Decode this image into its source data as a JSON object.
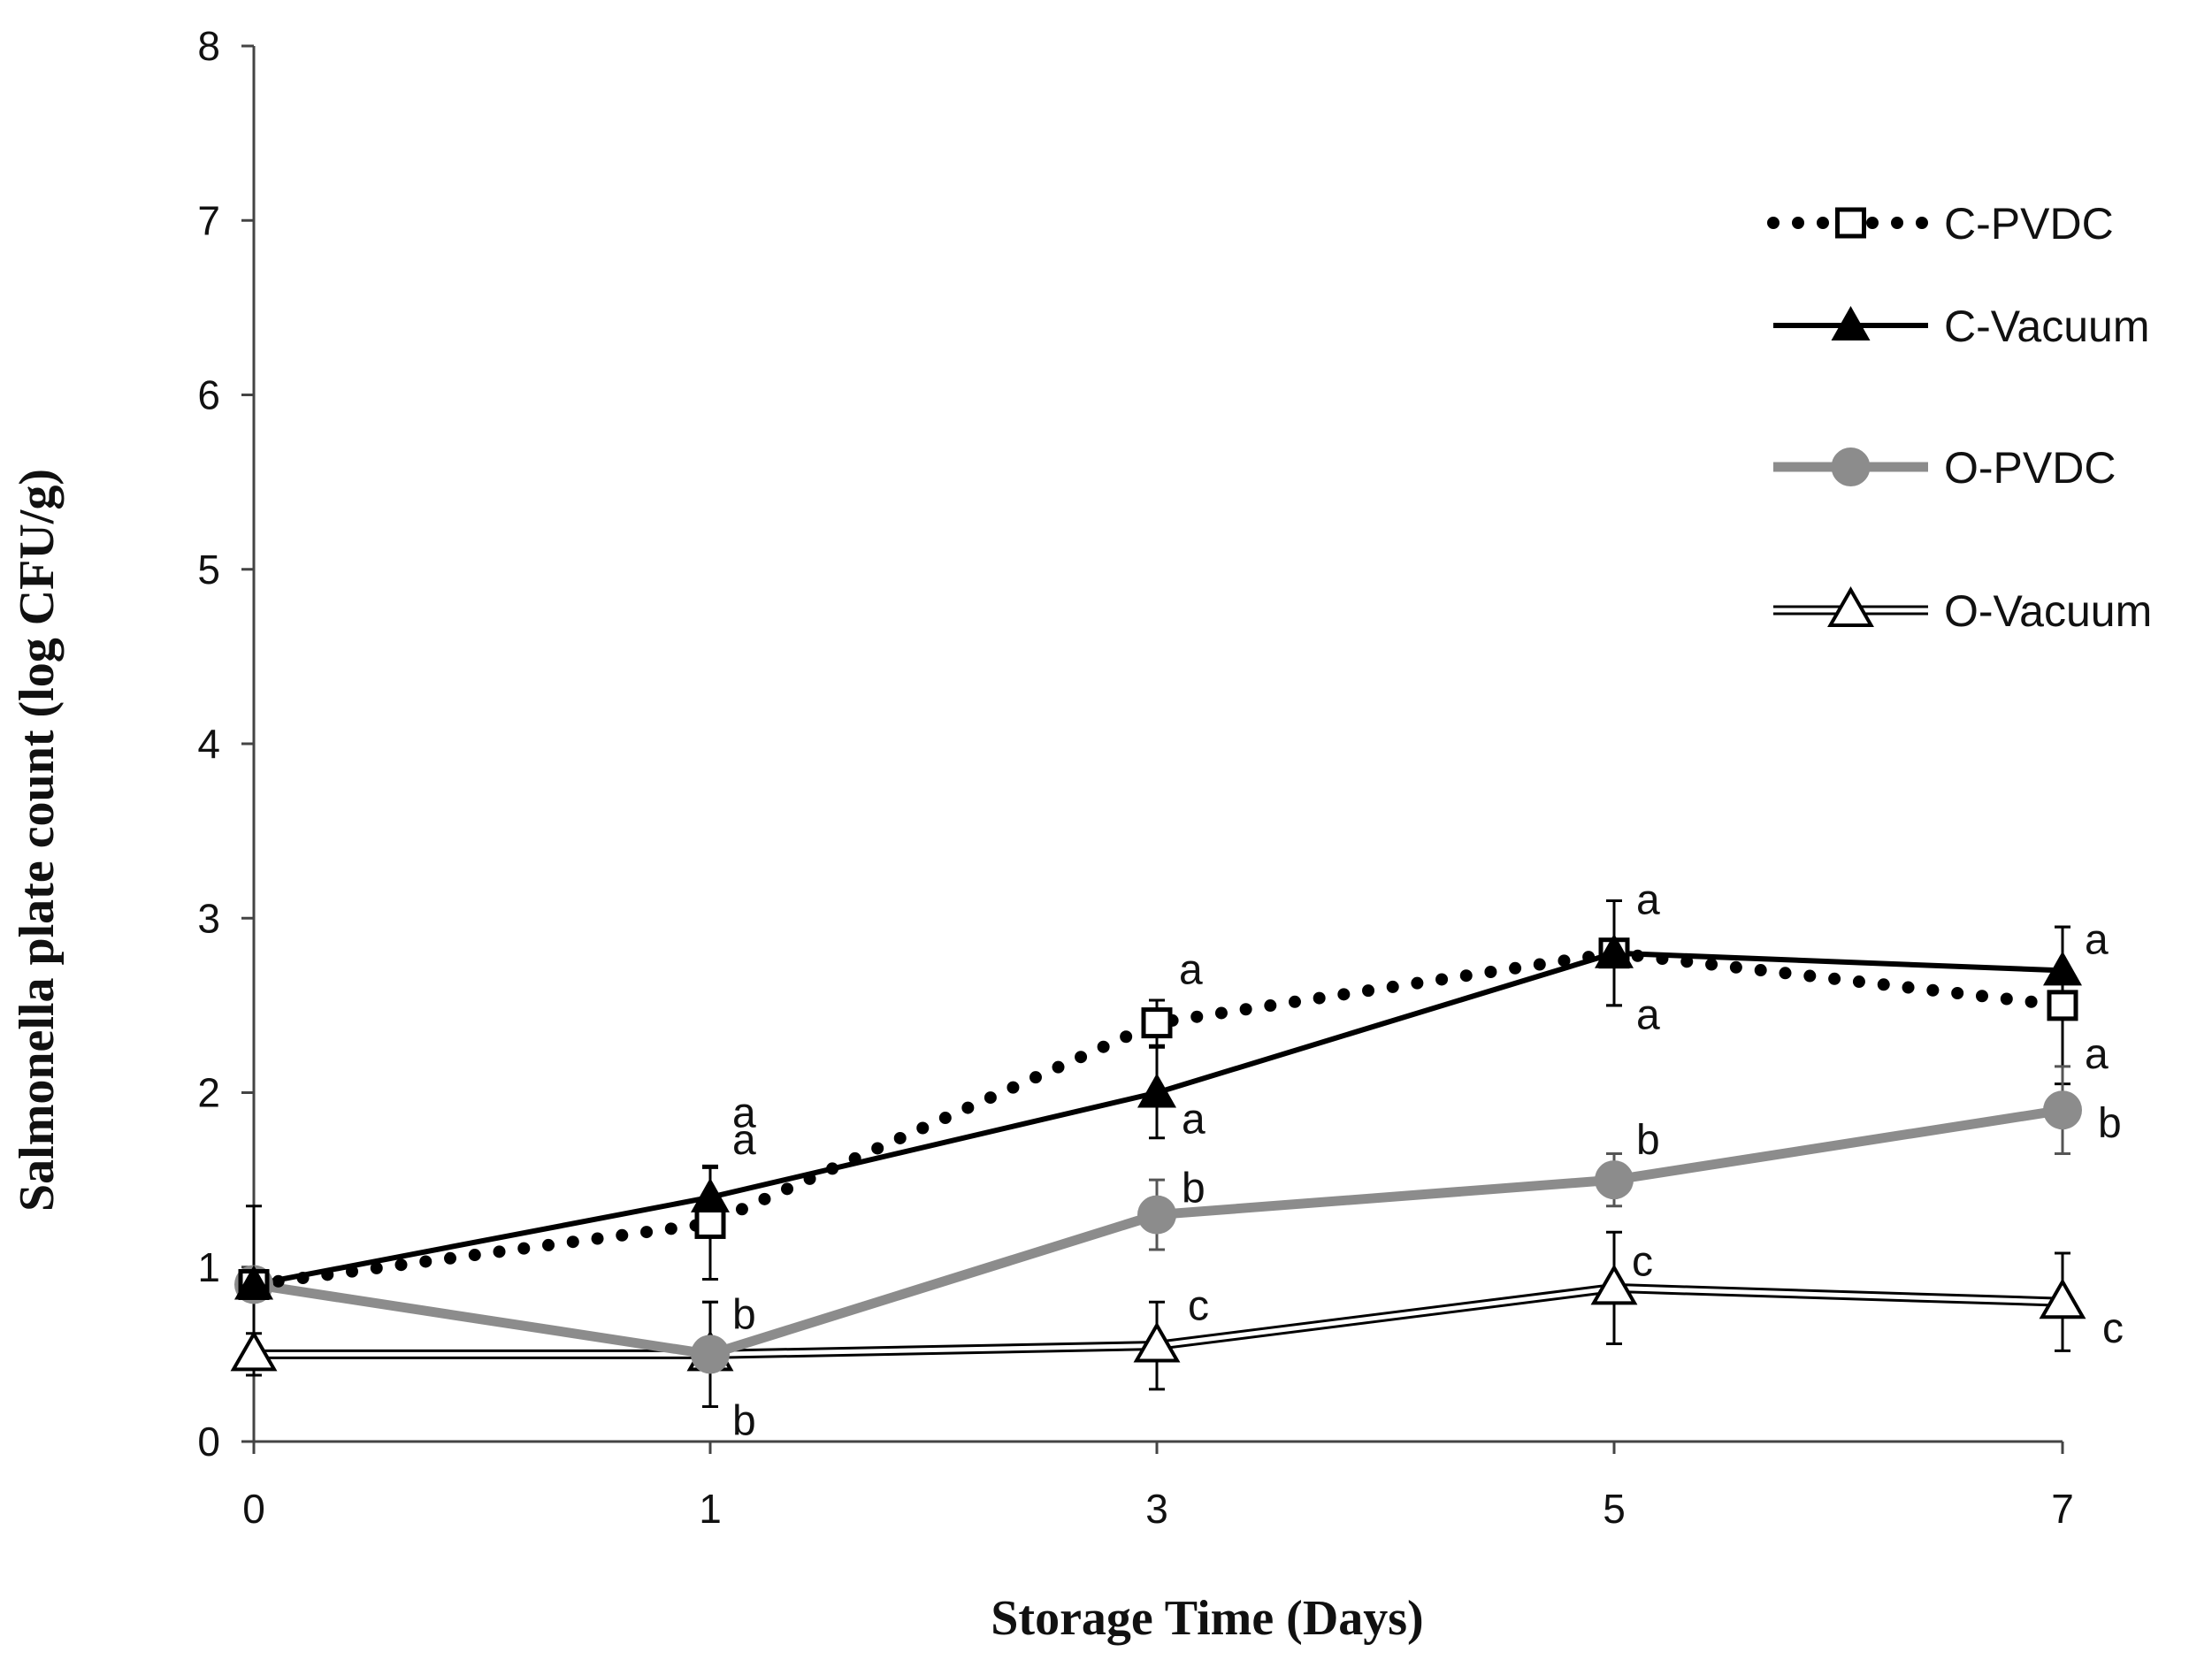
{
  "chart_data": {
    "type": "line",
    "title": "",
    "xlabel": "Storage Time  (Days)",
    "ylabel": "Salmonella plate count (log CFU/g)",
    "x_ticks": [
      "0",
      "1",
      "3",
      "5",
      "7"
    ],
    "y_ticks": [
      "0",
      "1",
      "2",
      "3",
      "4",
      "5",
      "6",
      "7",
      "8"
    ],
    "ylim": [
      0,
      8
    ],
    "grid": false,
    "legend": "right",
    "series": [
      {
        "name": "C-PVDC",
        "style": "dotted",
        "marker": "open-square",
        "color": "#000000",
        "values": [
          0.9,
          1.25,
          2.4,
          2.8,
          2.5
        ],
        "errors": [
          0.45,
          0.32,
          0.13,
          0.3,
          0.45
        ],
        "letters": [
          "",
          "a",
          "a",
          "a",
          "a"
        ]
      },
      {
        "name": "C-Vacuum",
        "style": "solid",
        "marker": "filled-triangle",
        "color": "#000000",
        "values": [
          0.9,
          1.4,
          2.0,
          2.8,
          2.7
        ],
        "errors": [
          0.05,
          0.18,
          0.26,
          0.3,
          0.25
        ],
        "letters": [
          "",
          "a",
          "a",
          "a",
          "a"
        ]
      },
      {
        "name": "O-PVDC",
        "style": "solid-thick",
        "marker": "filled-circle",
        "color": "#8c8c8c",
        "values": [
          0.9,
          0.5,
          1.3,
          1.5,
          1.9
        ],
        "errors": [
          0.05,
          0.3,
          0.2,
          0.15,
          0.25
        ],
        "letters": [
          "",
          "b",
          "b",
          "b",
          "b"
        ]
      },
      {
        "name": "O-Vacuum",
        "style": "double",
        "marker": "open-triangle",
        "color": "#000000",
        "values": [
          0.5,
          0.5,
          0.55,
          0.88,
          0.8
        ],
        "errors": [
          0.12,
          0.3,
          0.25,
          0.32,
          0.28
        ],
        "letters": [
          "",
          "b",
          "c",
          "c",
          "c"
        ]
      }
    ]
  }
}
